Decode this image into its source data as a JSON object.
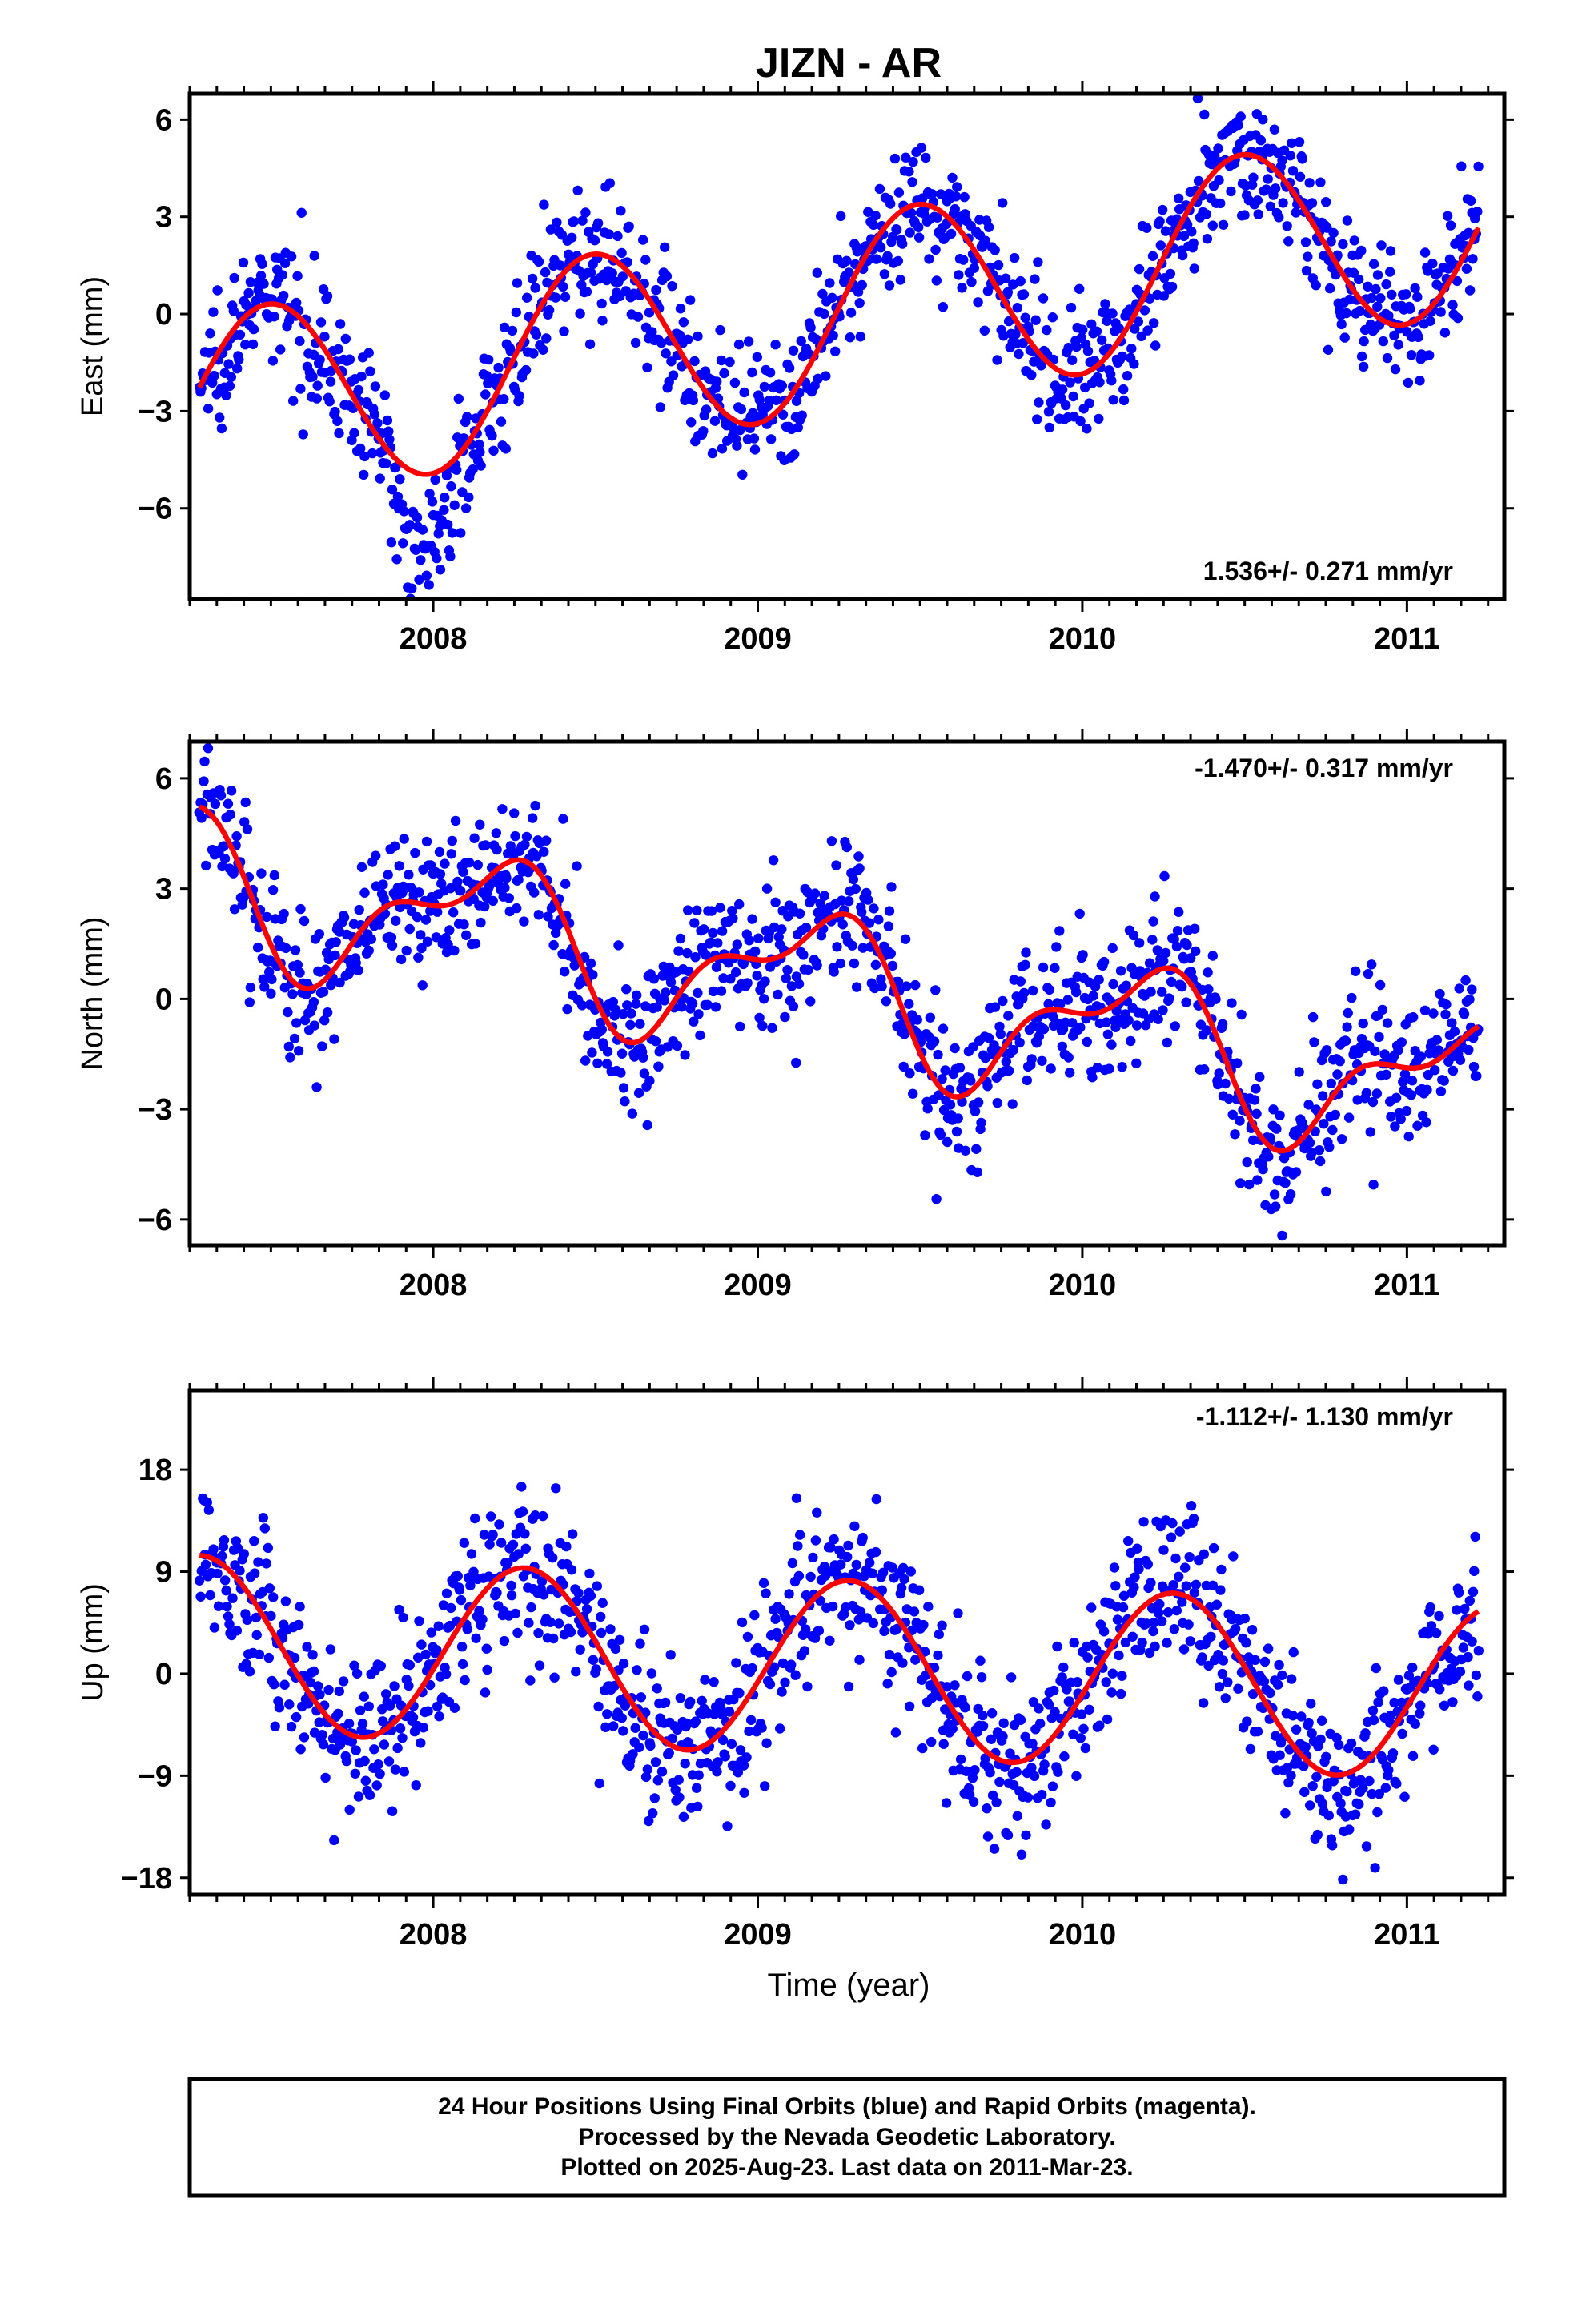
{
  "title": "JIZN - AR",
  "colors": {
    "final_orbits": "#0000ff",
    "fit": "#ff0000",
    "frame": "#000000"
  },
  "footer": {
    "line1": "24 Hour Positions Using Final Orbits (blue) and Rapid Orbits (magenta).",
    "line2": "Processed by the Nevada Geodetic Laboratory.",
    "line3": "Plotted on 2025-Aug-23. Last data on 2011-Mar-23."
  },
  "chart_data": [
    {
      "type": "scatter",
      "ylabel": "East (mm)",
      "xlabel": "",
      "xlim": [
        2007.25,
        2011.3
      ],
      "ylim": [
        -8.8,
        6.8
      ],
      "x_ticks": [
        2008,
        2009,
        2010,
        2011
      ],
      "y_ticks": [
        -6,
        -3,
        0,
        3,
        6
      ],
      "y_tick_labels": [
        "−6",
        "−3",
        "0",
        "3",
        "6"
      ],
      "rate_label": "1.536+/- 0.271 mm/yr",
      "rate_position": "bottom-right",
      "model": {
        "x_start": 2007.28,
        "x_end": 2011.22,
        "rate": 1.536,
        "offset": 0.0,
        "ref_year": 2009.25,
        "annual": [
          -3.0,
          0.2
        ],
        "semiannual": [
          0.0,
          0.0
        ]
      },
      "scatter_sigma": 1.0,
      "anomalies": [
        {
          "from": 2007.85,
          "to": 2008.1,
          "shift": -2.2
        }
      ],
      "point_count": 1200
    },
    {
      "type": "scatter",
      "ylabel": "North (mm)",
      "xlabel": "",
      "xlim": [
        2007.25,
        2011.3
      ],
      "ylim": [
        -6.7,
        7.0
      ],
      "x_ticks": [
        2008,
        2009,
        2010,
        2011
      ],
      "y_ticks": [
        -6,
        -3,
        0,
        3,
        6
      ],
      "y_tick_labels": [
        "−6",
        "−3",
        "0",
        "3",
        "6"
      ],
      "rate_label": "-1.470+/- 0.317 mm/yr",
      "rate_position": "top-right",
      "model": {
        "x_start": 2007.28,
        "x_end": 2011.22,
        "rate": -1.47,
        "offset": 0.3,
        "ref_year": 2009.25,
        "annual": [
          0.9,
          1.5
        ],
        "semiannual": [
          -0.5,
          -0.7
        ]
      },
      "scatter_sigma": 1.0,
      "anomalies": [],
      "point_count": 1200
    },
    {
      "type": "scatter",
      "ylabel": "Up (mm)",
      "xlabel": "Time (year)",
      "xlim": [
        2007.25,
        2011.3
      ],
      "ylim": [
        -19.5,
        25.0
      ],
      "x_ticks": [
        2008,
        2009,
        2010,
        2011
      ],
      "y_ticks": [
        -18,
        -9,
        0,
        9,
        18
      ],
      "y_tick_labels": [
        "−18",
        "−9",
        "0",
        "9",
        "18"
      ],
      "rate_label": "-1.112+/- 1.130 mm/yr",
      "rate_position": "top-right",
      "model": {
        "x_start": 2007.28,
        "x_end": 2011.22,
        "rate": -1.112,
        "offset": 0.5,
        "ref_year": 2009.25,
        "annual": [
          -1.5,
          7.6
        ],
        "semiannual": [
          0.0,
          0.0
        ]
      },
      "scatter_sigma": 3.6,
      "anomalies": [],
      "point_count": 1200
    }
  ]
}
